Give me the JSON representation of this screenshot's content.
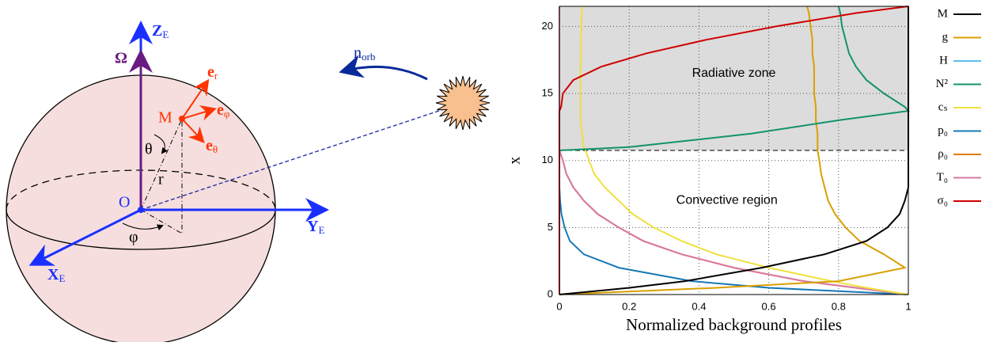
{
  "diagram": {
    "labels": {
      "z": "Z",
      "z_sub": "E",
      "omega": "Ω",
      "m": "M",
      "er": "e",
      "er_sub": "r",
      "ephi": "e",
      "ephi_sub": "φ",
      "etheta": "e",
      "etheta_sub": "θ",
      "theta": "θ",
      "r": "r",
      "o": "O",
      "phi": "φ",
      "y": "Y",
      "y_sub": "E",
      "x": "X",
      "x_sub": "E",
      "norb": "n",
      "norb_sub": "orb"
    }
  },
  "chart_data": {
    "type": "line",
    "orientation": "horizontal",
    "xlabel": "Normalized background profiles",
    "ylabel": "x",
    "annotations": [
      "Radiative zone",
      "Convective region"
    ],
    "boundary": 10.75,
    "xlim": [
      0,
      1
    ],
    "ylim": [
      0,
      21.5
    ],
    "xticks": [
      0,
      0.2,
      0.4,
      0.6,
      0.8,
      1
    ],
    "yticks": [
      0,
      5,
      10,
      15,
      20
    ],
    "grid": true,
    "y": [
      0,
      0.5,
      1,
      2,
      3,
      4,
      5,
      6,
      7,
      8,
      9,
      10,
      10.75,
      11,
      12,
      13,
      13.7,
      14,
      15,
      16,
      17,
      18,
      19,
      20,
      21,
      21.5
    ],
    "series": [
      {
        "name": "M",
        "color": "#000000",
        "values": [
          0,
          0.2,
          0.36,
          0.58,
          0.76,
          0.88,
          0.94,
          0.975,
          0.99,
          1,
          1,
          1,
          1,
          1,
          1,
          1,
          1,
          1,
          1,
          1,
          1,
          1,
          1,
          1,
          1,
          1
        ]
      },
      {
        "name": "g",
        "color": "#d9a000",
        "values": [
          0,
          0.45,
          0.8,
          0.99,
          0.93,
          0.86,
          0.82,
          0.79,
          0.77,
          0.76,
          0.75,
          0.745,
          0.74,
          0.74,
          0.74,
          0.735,
          0.735,
          0.735,
          0.73,
          0.73,
          0.73,
          0.725,
          0.725,
          0.72,
          0.715,
          0.71
        ]
      },
      {
        "name": "H",
        "color": "#5bc0e8",
        "values": [
          0,
          0,
          0,
          0,
          0,
          0,
          0,
          0,
          0,
          0,
          0,
          0,
          0,
          0,
          0,
          0,
          0,
          0,
          0,
          0,
          0,
          0,
          0,
          0,
          0,
          0
        ]
      },
      {
        "name": "N²",
        "color": "#13936a",
        "values": [
          0,
          0,
          0,
          0,
          0,
          0,
          0,
          0,
          0,
          0,
          0,
          0,
          0,
          0.2,
          0.55,
          0.8,
          1,
          0.99,
          0.93,
          0.88,
          0.85,
          0.83,
          0.82,
          0.81,
          0.805,
          0.8
        ]
      },
      {
        "name": "cₛ",
        "color": "#f0e040",
        "values": [
          1,
          0.88,
          0.78,
          0.6,
          0.45,
          0.35,
          0.27,
          0.21,
          0.17,
          0.13,
          0.1,
          0.085,
          0.075,
          0.07,
          0.065,
          0.06,
          0.06,
          0.06,
          0.06,
          0.06,
          0.06,
          0.062,
          0.062,
          0.063,
          0.064,
          0.065
        ]
      },
      {
        "name": "p₀",
        "color": "#1877b5",
        "values": [
          1,
          0.6,
          0.38,
          0.17,
          0.07,
          0.03,
          0.015,
          0.006,
          0.002,
          0,
          0,
          0,
          0,
          0,
          0,
          0,
          0,
          0,
          0,
          0,
          0,
          0,
          0,
          0,
          0,
          0
        ]
      },
      {
        "name": "ρ₀",
        "color": "#e07b00",
        "values": [
          1,
          0.85,
          0.7,
          0.5,
          0.35,
          0.24,
          0.17,
          0.11,
          0.07,
          0.04,
          0.02,
          0.01,
          0,
          0,
          0,
          0,
          0,
          0,
          0,
          0,
          0,
          0,
          0,
          0,
          0,
          0
        ]
      },
      {
        "name": "T₀",
        "color": "#d879a8",
        "values": [
          1,
          0.85,
          0.7,
          0.5,
          0.35,
          0.24,
          0.17,
          0.11,
          0.07,
          0.04,
          0.02,
          0.01,
          0,
          0,
          0,
          0,
          0,
          0,
          0,
          0,
          0,
          0,
          0,
          0,
          0,
          0
        ]
      },
      {
        "name": "σ₀",
        "color": "#d00000",
        "values": [
          0,
          0,
          0,
          0,
          0,
          0,
          0,
          0,
          0,
          0,
          0,
          0,
          0,
          0,
          0,
          0,
          0,
          0.005,
          0.01,
          0.04,
          0.12,
          0.25,
          0.42,
          0.62,
          0.85,
          1
        ]
      }
    ]
  }
}
